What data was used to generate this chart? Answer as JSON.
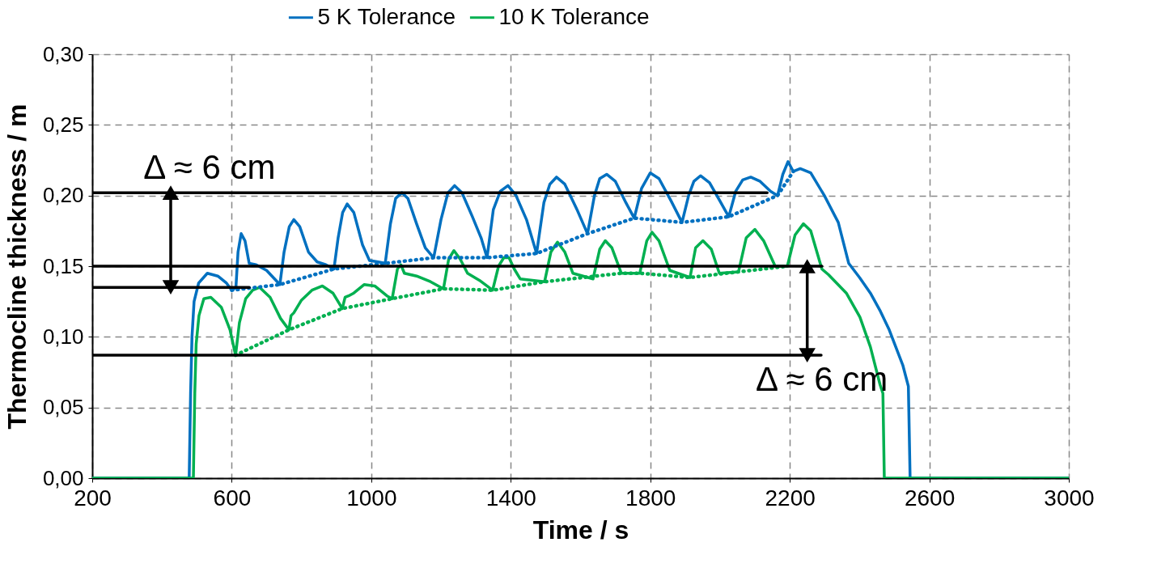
{
  "chart_data": {
    "type": "line",
    "xlabel": "Time / s",
    "ylabel": "Thermocline thickness / m",
    "xlim": [
      200,
      3000
    ],
    "xticks": [
      200,
      600,
      1000,
      1400,
      1800,
      2200,
      2600,
      3000
    ],
    "ylim": [
      0,
      0.3
    ],
    "yticks": [
      {
        "value": 0,
        "label": "0,00"
      },
      {
        "value": 0.05,
        "label": "0,05"
      },
      {
        "value": 0.1,
        "label": "0,10"
      },
      {
        "value": 0.15,
        "label": "0,15"
      },
      {
        "value": 0.2,
        "label": "0,20"
      },
      {
        "value": 0.25,
        "label": "0,25"
      },
      {
        "value": 0.3,
        "label": "0,30"
      }
    ],
    "grid": true,
    "legend": "top",
    "line_style": "solid",
    "series": [
      {
        "name": "5 K Tolerance",
        "color": "#0070c0",
        "x": [
          200,
          478,
          482,
          486,
          492,
          505,
          530,
          560,
          585,
          600,
          612,
          618,
          627,
          638,
          650,
          670,
          700,
          738,
          750,
          765,
          778,
          795,
          820,
          845,
          870,
          893,
          905,
          918,
          931,
          950,
          975,
          995,
          1020,
          1040,
          1055,
          1070,
          1088,
          1105,
          1130,
          1155,
          1179,
          1200,
          1220,
          1239,
          1260,
          1290,
          1315,
          1332,
          1350,
          1370,
          1392,
          1415,
          1445,
          1474,
          1495,
          1512,
          1531,
          1555,
          1590,
          1620,
          1640,
          1655,
          1675,
          1700,
          1730,
          1754,
          1775,
          1800,
          1825,
          1860,
          1891,
          1910,
          1925,
          1944,
          1970,
          2000,
          2025,
          2045,
          2065,
          2088,
          2115,
          2145,
          2165,
          2180,
          2195,
          2210,
          2230,
          2260,
          2299,
          2339,
          2369,
          2400,
          2431,
          2460,
          2485,
          2524,
          2540,
          2545,
          3000
        ],
        "values": [
          0,
          0,
          0.06,
          0.1,
          0.125,
          0.138,
          0.145,
          0.143,
          0.138,
          0.133,
          0.135,
          0.16,
          0.173,
          0.168,
          0.152,
          0.151,
          0.147,
          0.137,
          0.16,
          0.178,
          0.183,
          0.178,
          0.16,
          0.153,
          0.151,
          0.148,
          0.17,
          0.188,
          0.194,
          0.188,
          0.165,
          0.154,
          0.153,
          0.152,
          0.18,
          0.198,
          0.202,
          0.198,
          0.18,
          0.163,
          0.156,
          0.183,
          0.202,
          0.207,
          0.202,
          0.185,
          0.17,
          0.156,
          0.19,
          0.203,
          0.207,
          0.2,
          0.183,
          0.159,
          0.195,
          0.208,
          0.213,
          0.208,
          0.19,
          0.173,
          0.2,
          0.212,
          0.215,
          0.21,
          0.195,
          0.184,
          0.205,
          0.216,
          0.212,
          0.196,
          0.181,
          0.2,
          0.21,
          0.214,
          0.209,
          0.196,
          0.185,
          0.203,
          0.211,
          0.213,
          0.21,
          0.203,
          0.2,
          0.215,
          0.224,
          0.217,
          0.219,
          0.216,
          0.2,
          0.181,
          0.152,
          0.142,
          0.131,
          0.118,
          0.105,
          0.08,
          0.065,
          0,
          0
        ]
      },
      {
        "name": "10 K Tolerance",
        "color": "#00b050",
        "x": [
          200,
          490,
          494,
          498,
          506,
          520,
          540,
          570,
          595,
          611,
          622,
          640,
          660,
          680,
          710,
          740,
          764,
          770,
          778,
          800,
          830,
          860,
          890,
          917,
          925,
          935,
          950,
          980,
          1010,
          1045,
          1060,
          1075,
          1085,
          1095,
          1130,
          1170,
          1207,
          1222,
          1237,
          1255,
          1276,
          1310,
          1348,
          1365,
          1380,
          1395,
          1410,
          1427,
          1497,
          1515,
          1534,
          1555,
          1578,
          1636,
          1655,
          1671,
          1690,
          1717,
          1770,
          1790,
          1805,
          1825,
          1856,
          1914,
          1930,
          1951,
          1975,
          1998,
          2053,
          2075,
          2100,
          2125,
          2158,
          2193,
          2215,
          2239,
          2260,
          2292,
          2311,
          2362,
          2401,
          2431,
          2459,
          2467,
          2471,
          3000
        ],
        "values": [
          0,
          0,
          0.06,
          0.095,
          0.115,
          0.127,
          0.128,
          0.121,
          0.105,
          0.087,
          0.11,
          0.127,
          0.133,
          0.135,
          0.128,
          0.113,
          0.105,
          0.115,
          0.117,
          0.126,
          0.133,
          0.136,
          0.131,
          0.12,
          0.128,
          0.129,
          0.131,
          0.137,
          0.136,
          0.129,
          0.127,
          0.148,
          0.151,
          0.145,
          0.143,
          0.139,
          0.134,
          0.155,
          0.161,
          0.155,
          0.145,
          0.14,
          0.133,
          0.15,
          0.156,
          0.156,
          0.148,
          0.141,
          0.139,
          0.16,
          0.167,
          0.16,
          0.145,
          0.141,
          0.162,
          0.168,
          0.163,
          0.145,
          0.145,
          0.168,
          0.174,
          0.168,
          0.147,
          0.142,
          0.163,
          0.168,
          0.162,
          0.145,
          0.146,
          0.17,
          0.176,
          0.168,
          0.15,
          0.15,
          0.172,
          0.18,
          0.175,
          0.148,
          0.144,
          0.131,
          0.114,
          0.093,
          0.066,
          0.06,
          0,
          0
        ]
      },
      {
        "color": "#0070c0",
        "line_style": "dotted",
        "x": [
          600,
          738,
          893,
          1040,
          1179,
          1332,
          1474,
          1620,
          1754,
          1891,
          2025,
          2165,
          2210
        ],
        "values": [
          0.133,
          0.137,
          0.148,
          0.152,
          0.156,
          0.156,
          0.159,
          0.173,
          0.184,
          0.181,
          0.185,
          0.2,
          0.217
        ]
      },
      {
        "color": "#00b050",
        "line_style": "dotted",
        "x": [
          611,
          764,
          917,
          1060,
          1207,
          1348,
          1497,
          1717,
          1770,
          1914,
          2053,
          2193
        ],
        "values": [
          0.087,
          0.105,
          0.12,
          0.127,
          0.134,
          0.133,
          0.139,
          0.145,
          0.145,
          0.142,
          0.146,
          0.15
        ]
      },
      {
        "color": "#000000",
        "x": [
          200,
          2135
        ],
        "values": [
          0.202,
          0.202
        ]
      },
      {
        "color": "#000000",
        "x": [
          200,
          2292
        ],
        "values": [
          0.15,
          0.15
        ]
      },
      {
        "color": "#000000",
        "x": [
          200,
          650
        ],
        "values": [
          0.135,
          0.135
        ]
      },
      {
        "color": "#000000",
        "x": [
          200,
          2290
        ],
        "values": [
          0.087,
          0.087
        ]
      },
      {
        "color": "#000000",
        "marker": "triangle",
        "x": [
          425,
          425
        ],
        "values": [
          0.135,
          0.202
        ]
      },
      {
        "color": "#000000",
        "marker": "triangle",
        "x": [
          2250,
          2250
        ],
        "values": [
          0.087,
          0.15
        ]
      }
    ],
    "annotations": [
      "Δ ≈ 6 cm",
      "Δ ≈ 6 cm"
    ]
  }
}
